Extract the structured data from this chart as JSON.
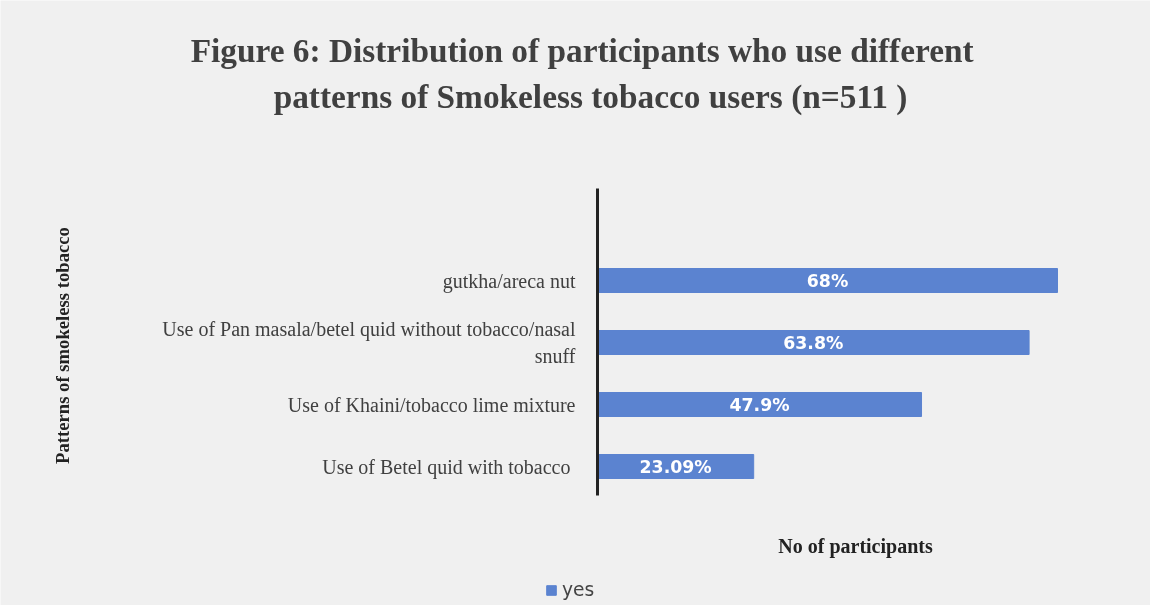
{
  "chart_data": {
    "type": "bar",
    "orientation": "horizontal",
    "title": "Figure   6: Distribution of participants who use different patterns of Smokeless tobacco users (n=511 )",
    "xlabel": "No of participants",
    "ylabel": "Patterns of smokeless tobacco",
    "categories": [
      "gutkha/areca nut",
      "Use of Pan masala/betel quid without tobacco/nasal snuff",
      "Use of Khaini/tobacco lime mixture",
      "Use of  Betel quid with tobacco"
    ],
    "series": [
      {
        "name": "yes",
        "color": "#5b83d0",
        "values": [
          68,
          63.8,
          47.9,
          23.09
        ],
        "value_labels": [
          "68%",
          "63.8%",
          "47.9%",
          "23.09%"
        ]
      }
    ],
    "legend": "bottom"
  }
}
